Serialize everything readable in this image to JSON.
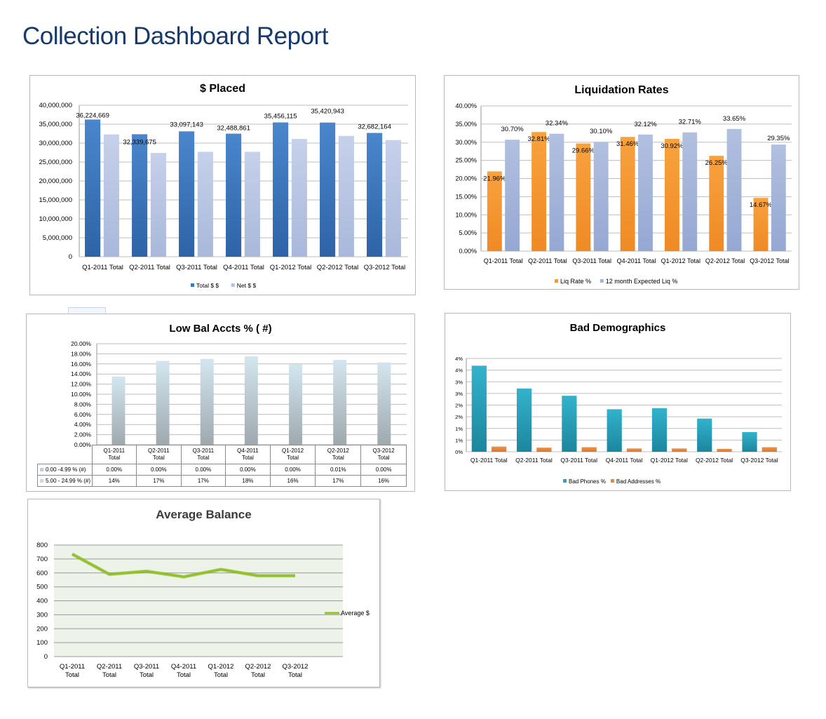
{
  "page": {
    "title": "Collection Dashboard Report"
  },
  "chart_data": [
    {
      "id": "placed",
      "type": "bar",
      "title": "$ Placed",
      "categories": [
        "Q1-2011 Total",
        "Q2-2011 Total",
        "Q3-2011 Total",
        "Q4-2011 Total",
        "Q1-2012 Total",
        "Q2-2012 Total",
        "Q3-2012 Total"
      ],
      "series": [
        {
          "name": "Total $ $",
          "color": "#3c79bf",
          "values": [
            36224669,
            32339675,
            33097143,
            32488861,
            35456115,
            35420943,
            32682164
          ]
        },
        {
          "name": "Net $ $",
          "color": "#b3c2e0",
          "values": [
            32300000,
            27400000,
            27700000,
            27700000,
            31100000,
            31900000,
            30800000
          ]
        }
      ],
      "data_labels": [
        "36,224,669",
        "32,339,675",
        "33,097,143",
        "32,488,861",
        "35,456,115",
        "35,420,943",
        "32,682,164"
      ],
      "ylim": [
        0,
        40000000
      ],
      "yticks": [
        "0",
        "5,000,000",
        "10,000,000",
        "15,000,000",
        "20,000,000",
        "25,000,000",
        "30,000,000",
        "35,000,000",
        "40,000,000"
      ],
      "legend": "bottom"
    },
    {
      "id": "liquidation",
      "type": "bar",
      "title": "Liquidation Rates",
      "categories": [
        "Q1-2011 Total",
        "Q2-2011 Total",
        "Q3-2011 Total",
        "Q4-2011 Total",
        "Q1-2012 Total",
        "Q2-2012 Total",
        "Q3-2012 Total"
      ],
      "series": [
        {
          "name": "Liq Rate %",
          "color": "#f6972f",
          "values": [
            21.96,
            32.81,
            29.66,
            31.46,
            30.92,
            26.25,
            14.67
          ],
          "labels": [
            "21.96%",
            "32.81%",
            "29.66%",
            "31.46%",
            "30.92%",
            "26.25%",
            "14.67%"
          ]
        },
        {
          "name": "12 month Expected Liq %",
          "color": "#a2b3d8",
          "values": [
            30.7,
            32.34,
            30.1,
            32.12,
            32.71,
            33.65,
            29.35
          ],
          "labels": [
            "30.70%",
            "32.34%",
            "30.10%",
            "32.12%",
            "32.71%",
            "33.65%",
            "29.35%"
          ]
        }
      ],
      "ylim": [
        0,
        40
      ],
      "yticks": [
        "0.00%",
        "5.00%",
        "10.00%",
        "15.00%",
        "20.00%",
        "25.00%",
        "30.00%",
        "35.00%",
        "40.00%"
      ],
      "legend": "bottom"
    },
    {
      "id": "lowbal",
      "type": "bar",
      "title": "Low Bal  Accts % ( #)",
      "categories": [
        [
          "Q1-2011",
          "Total"
        ],
        [
          "Q2-2011",
          "Total"
        ],
        [
          "Q3-2011",
          "Total"
        ],
        [
          "Q4-2011",
          "Total"
        ],
        [
          "Q1-2012",
          "Total"
        ],
        [
          "Q2-2012",
          "Total"
        ],
        [
          "Q3-2012",
          "Total"
        ]
      ],
      "series": [
        {
          "name": "0.00 -4.99  % (#)",
          "color": "#b7d0e8",
          "values": [
            0.0,
            0.0,
            0.0,
            0.0,
            0.0,
            0.01,
            0.0
          ],
          "labels": [
            "0.00%",
            "0.00%",
            "0.00%",
            "0.00%",
            "0.00%",
            "0.01%",
            "0.00%"
          ]
        },
        {
          "name": "5.00 - 24.99 % (#)",
          "color": "#c9dbe6",
          "values": [
            13.5,
            16.6,
            17.0,
            17.5,
            15.9,
            16.8,
            16.3
          ],
          "labels": [
            "14%",
            "17%",
            "17%",
            "18%",
            "16%",
            "17%",
            "16%"
          ]
        }
      ],
      "ylim": [
        0,
        20
      ],
      "yticks": [
        "0.00%",
        "2.00%",
        "4.00%",
        "6.00%",
        "8.00%",
        "10.00%",
        "12.00%",
        "14.00%",
        "16.00%",
        "18.00%",
        "20.00%"
      ],
      "legend": "data-table"
    },
    {
      "id": "baddemo",
      "type": "bar",
      "title": "Bad Demographics",
      "categories": [
        "Q1-2011 Total",
        "Q2-2011 Total",
        "Q3-2011 Total",
        "Q4-2011 Total",
        "Q1-2012 Total",
        "Q2-2012 Total",
        "Q3-2012 Total"
      ],
      "series": [
        {
          "name": "Bad Phones %",
          "color": "#2aa5bf",
          "values": [
            4.15,
            3.05,
            2.7,
            2.05,
            2.1,
            1.6,
            0.95
          ]
        },
        {
          "name": "Bad Addresses %",
          "color": "#e5883c",
          "values": [
            0.25,
            0.2,
            0.22,
            0.16,
            0.16,
            0.14,
            0.22
          ]
        }
      ],
      "ylim": [
        0,
        4.5
      ],
      "yticks": [
        "0%",
        "1%",
        "1%",
        "2%",
        "2%",
        "3%",
        "3%",
        "4%",
        "4%"
      ],
      "legend": "bottom"
    },
    {
      "id": "avgbal",
      "type": "line",
      "title": "Average Balance",
      "categories": [
        [
          "Q1-2011",
          "Total"
        ],
        [
          "Q2-2011",
          "Total"
        ],
        [
          "Q3-2011",
          "Total"
        ],
        [
          "Q4-2011",
          "Total"
        ],
        [
          "Q1-2012",
          "Total"
        ],
        [
          "Q2-2012",
          "Total"
        ],
        [
          "Q3-2012",
          "Total"
        ]
      ],
      "series": [
        {
          "name": "Average $",
          "color": "#8fc31f",
          "values": [
            735,
            590,
            612,
            572,
            625,
            580,
            580
          ]
        }
      ],
      "ylim": [
        0,
        800
      ],
      "yticks": [
        "0",
        "100",
        "200",
        "300",
        "400",
        "500",
        "600",
        "700",
        "800"
      ],
      "legend": "right"
    }
  ]
}
